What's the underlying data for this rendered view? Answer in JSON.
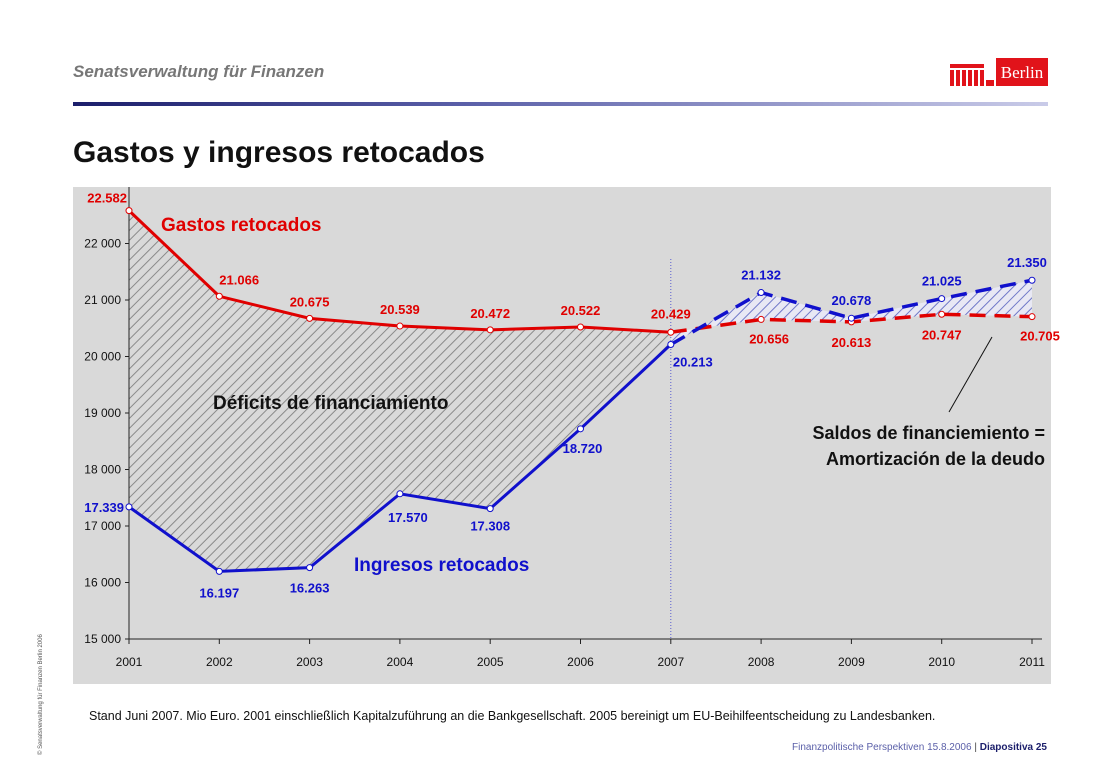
{
  "header": {
    "org": "Senatsverwaltung für Finanzen",
    "logo_text": "Berlin",
    "title": "Gastos y ingresos retocados"
  },
  "colors": {
    "expenses": "#e00000",
    "revenues": "#1010cc",
    "plot_bg": "#d9d9d9",
    "accent": "#1b1e6b"
  },
  "chart_data": {
    "type": "line",
    "categories": [
      "2001",
      "2002",
      "2003",
      "2004",
      "2005",
      "2006",
      "2007",
      "2008",
      "2009",
      "2010",
      "2011"
    ],
    "ylim": [
      15000,
      23000
    ],
    "yticks": [
      "15 000",
      "16 000",
      "17 000",
      "18 000",
      "19 000",
      "20 000",
      "21 000",
      "22 000"
    ],
    "grid": false,
    "split_after": "2007",
    "series": [
      {
        "name": "Gastos retocados",
        "color": "#e00000",
        "values": [
          22582,
          21066,
          20675,
          20539,
          20472,
          20522,
          20429,
          20656,
          20613,
          20747,
          20705
        ],
        "labels": [
          "22.582",
          "21.066",
          "20.675",
          "20.539",
          "20.472",
          "20.522",
          "20.429",
          "20.656",
          "20.613",
          "20.747",
          "20.705"
        ]
      },
      {
        "name": "Ingresos retocados",
        "color": "#1010cc",
        "values": [
          17339,
          16197,
          16263,
          17570,
          17308,
          18720,
          20213,
          21132,
          20678,
          21025,
          21350
        ],
        "labels": [
          "17.339",
          "16.197",
          "16.263",
          "17.570",
          "17.308",
          "18.720",
          "20.213",
          "21.132",
          "20.678",
          "21.025",
          "21.350"
        ]
      }
    ],
    "annotations": {
      "deficit": "Déficits de financiamiento",
      "surplus_line1": "Saldos de financiemiento  =",
      "surplus_line2": "Amortización de la deudo"
    }
  },
  "footer": {
    "note": "Stand Juni 2007. Mio Euro. 2001 einschließlich Kapitalzuführung an die Bankgesellschaft. 2005 bereinigt um EU-Beihilfeentscheidung zu Landesbanken.",
    "copyright": "© Senatsverwaltung für Finanzen Berlin 2006",
    "presentation": "Finanzpolitische Perspektiven 15.8.2006",
    "separator": "|",
    "slide": "Diapositiva 25"
  }
}
